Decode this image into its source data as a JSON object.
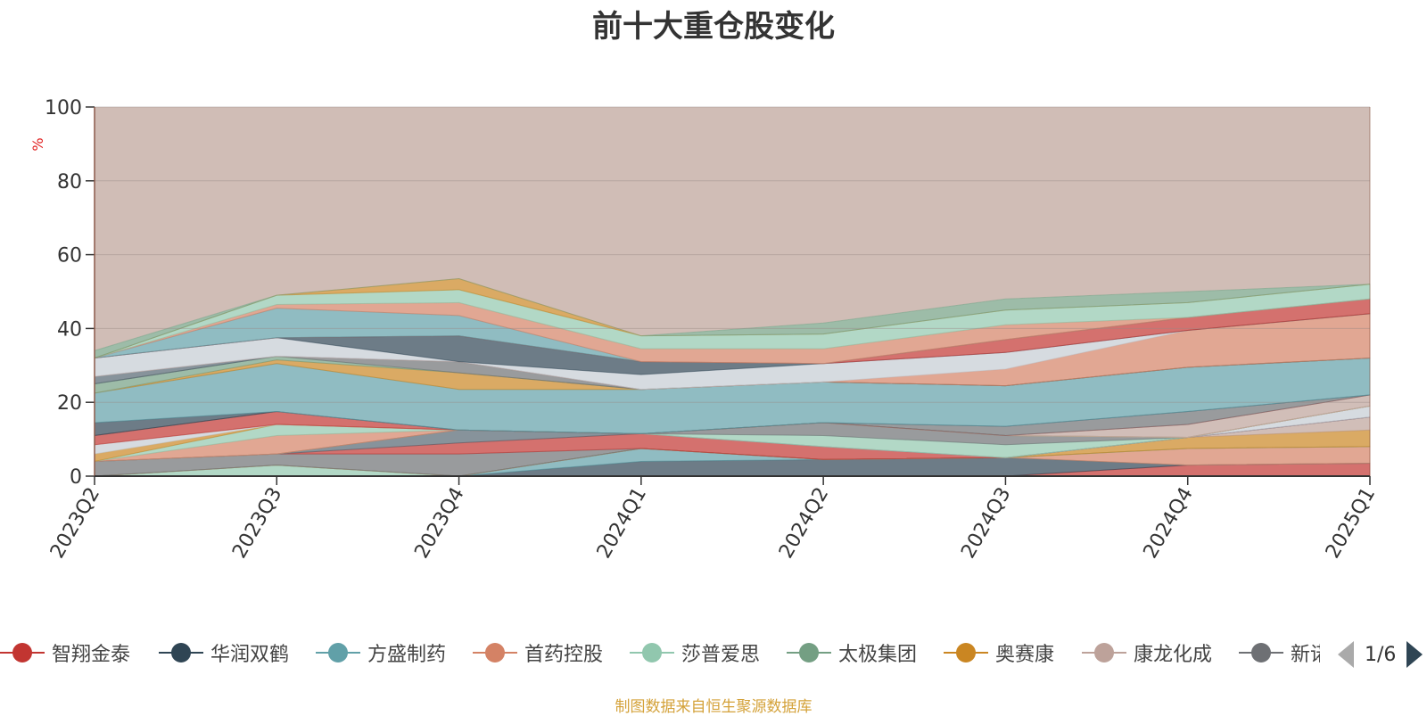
{
  "chart_data": {
    "type": "area",
    "title": "前十大重仓股变化",
    "ylabel": "%",
    "ylim": [
      0,
      100
    ],
    "yticks": [
      0,
      20,
      40,
      60,
      80,
      100
    ],
    "x": [
      "2023Q2",
      "2023Q3",
      "2023Q4",
      "2024Q1",
      "2024Q2",
      "2024Q3",
      "2024Q4",
      "2025Q1"
    ],
    "stacked": true,
    "grid": true,
    "series": [
      {
        "name": "智翔金泰",
        "color": "#c23531",
        "values": [
          0,
          0,
          0,
          0,
          0,
          0,
          3.0,
          3.5
        ]
      },
      {
        "name": "华润双鹤",
        "color": "#2f4554",
        "values": [
          0,
          0,
          0,
          4.0,
          4.5,
          5.0,
          0,
          0
        ]
      },
      {
        "name": "方盛制药",
        "color": "#61a0a8",
        "values": [
          0,
          0,
          0,
          3.5,
          0,
          0,
          0,
          0
        ]
      },
      {
        "name": "首药控股",
        "color": "#d48265",
        "values": [
          0,
          0,
          0,
          0,
          0,
          0,
          4.5,
          4.5
        ]
      },
      {
        "name": "莎普爱思",
        "color": "#91c7ae",
        "values": [
          0,
          3.0,
          0,
          0,
          0,
          0,
          0,
          0
        ]
      },
      {
        "name": "太极集团",
        "color": "#749f83",
        "values": [
          0,
          0,
          0,
          0,
          0,
          0,
          0,
          0
        ]
      },
      {
        "name": "奥赛康",
        "color": "#ca8622",
        "values": [
          0,
          0,
          0,
          0,
          0,
          0,
          3.0,
          4.5
        ]
      },
      {
        "name": "康龙化成",
        "color": "#bda29a",
        "values": [
          0,
          0,
          0,
          0,
          0,
          0,
          0,
          3.5
        ]
      },
      {
        "name": "新诺威",
        "color": "#6e7074",
        "values": [
          4.0,
          3.0,
          6.0,
          0,
          0,
          0,
          0,
          0
        ]
      },
      {
        "name": "",
        "color": "#c23531",
        "values": [
          0,
          0,
          3.0,
          4.0,
          3.5,
          0,
          0,
          0
        ]
      },
      {
        "name": "",
        "color": "#546570",
        "values": [
          0,
          0,
          3.5,
          0,
          0,
          0,
          0,
          0
        ]
      },
      {
        "name": "",
        "color": "#c4ccd3",
        "values": [
          0,
          0,
          0,
          0,
          0,
          0,
          0,
          3.0
        ]
      },
      {
        "name": "",
        "color": "#91c7ae",
        "values": [
          0,
          0,
          0,
          0,
          3.0,
          3.5,
          0,
          0
        ]
      },
      {
        "name": "",
        "color": "#6e7074",
        "values": [
          0,
          0,
          0,
          0,
          3.5,
          2.5,
          0,
          0
        ]
      },
      {
        "name": "",
        "color": "#d48265",
        "values": [
          0,
          5.0,
          0,
          0,
          0,
          0,
          0,
          0
        ]
      },
      {
        "name": "",
        "color": "#91c7ae",
        "values": [
          0,
          3.0,
          0,
          0,
          0,
          0,
          0,
          0
        ]
      },
      {
        "name": "",
        "color": "#ca8622",
        "values": [
          2.0,
          0,
          0,
          0,
          0,
          0,
          0,
          0
        ]
      },
      {
        "name": "",
        "color": "#c4ccd3",
        "values": [
          2.5,
          0,
          0,
          0,
          0,
          0,
          0,
          0
        ]
      },
      {
        "name": "",
        "color": "#bda29a",
        "values": [
          0,
          0,
          0,
          0,
          0,
          0,
          3.5,
          3.0
        ]
      },
      {
        "name": "",
        "color": "#c23531",
        "values": [
          2.5,
          3.5,
          0,
          0,
          0,
          0,
          0,
          0
        ]
      },
      {
        "name": "",
        "color": "#6e7074",
        "values": [
          0,
          0,
          0,
          0,
          0,
          2.5,
          3.5,
          0
        ]
      },
      {
        "name": "",
        "color": "#2f4554",
        "values": [
          3.5,
          0,
          0,
          0,
          0,
          0,
          0,
          0
        ]
      },
      {
        "name": "",
        "color": "#61a0a8",
        "values": [
          8.0,
          13.0,
          11.0,
          12.0,
          11.0,
          11.0,
          12.0,
          10.0
        ]
      },
      {
        "name": "",
        "color": "#ca8622",
        "values": [
          0,
          1.0,
          4.5,
          0,
          0,
          0,
          0,
          0
        ]
      },
      {
        "name": "",
        "color": "#749f83",
        "values": [
          2.5,
          1.0,
          0,
          0,
          0,
          0,
          0,
          0
        ]
      },
      {
        "name": "",
        "color": "#6e7074",
        "values": [
          0,
          0,
          3.0,
          0,
          0,
          0,
          0,
          0
        ]
      },
      {
        "name": "",
        "color": "#546570",
        "values": [
          2.0,
          0,
          0,
          0,
          0,
          0,
          0,
          0
        ]
      },
      {
        "name": "",
        "color": "#d48265",
        "values": [
          0,
          0,
          0,
          0,
          0,
          4.5,
          10.0,
          12.0
        ]
      },
      {
        "name": "",
        "color": "#c4ccd3",
        "values": [
          5.0,
          5.0,
          0,
          4.0,
          5.0,
          4.5,
          0,
          0
        ]
      },
      {
        "name": "",
        "color": "#2f4554",
        "values": [
          0,
          0,
          7.0,
          3.5,
          0,
          0,
          0,
          0
        ]
      },
      {
        "name": "",
        "color": "#c23531",
        "values": [
          0,
          0,
          0,
          0,
          0,
          3.5,
          3.5,
          4.0
        ]
      },
      {
        "name": "",
        "color": "#61a0a8",
        "values": [
          0,
          8.0,
          5.5,
          0,
          0,
          0,
          0,
          0
        ]
      },
      {
        "name": "",
        "color": "#d48265",
        "values": [
          0,
          1.0,
          3.5,
          3.5,
          4.0,
          4.0,
          0,
          0
        ]
      },
      {
        "name": "",
        "color": "#91c7ae",
        "values": [
          0,
          2.5,
          3.5,
          3.5,
          4.0,
          4.0,
          4.0,
          4.0
        ]
      },
      {
        "name": "",
        "color": "#ca8622",
        "values": [
          0,
          0,
          3.0,
          0,
          0,
          0,
          0,
          0
        ]
      },
      {
        "name": "",
        "color": "#749f83",
        "values": [
          2.0,
          0,
          0,
          0,
          3.0,
          3.0,
          3.0,
          0
        ]
      }
    ],
    "remainder_color": "#d0bdb6"
  },
  "legend": {
    "items": [
      {
        "label": "智翔金泰",
        "color": "#c23531"
      },
      {
        "label": "华润双鹤",
        "color": "#2f4554"
      },
      {
        "label": "方盛制药",
        "color": "#61a0a8"
      },
      {
        "label": "首药控股",
        "color": "#d48265"
      },
      {
        "label": "莎普爱思",
        "color": "#91c7ae"
      },
      {
        "label": "太极集团",
        "color": "#749f83"
      },
      {
        "label": "奥赛康",
        "color": "#ca8622"
      },
      {
        "label": "康龙化成",
        "color": "#bda29a"
      },
      {
        "label": "新诺威",
        "color": "#6e7074"
      }
    ],
    "page_text": "1/6"
  },
  "source_note": "制图数据来自恒生聚源数据库"
}
